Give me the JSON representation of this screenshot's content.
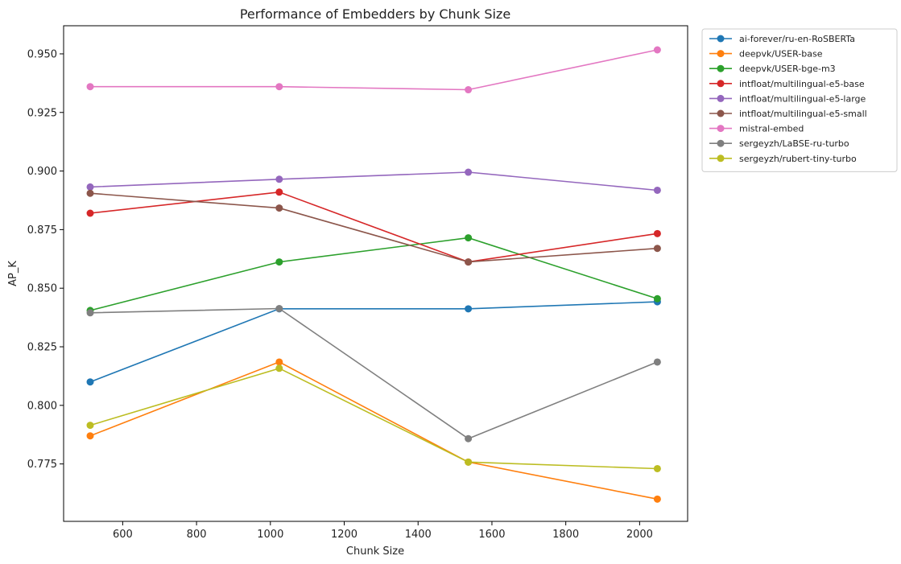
{
  "chart_data": {
    "type": "line",
    "title": "Performance of Embedders by Chunk Size",
    "xlabel": "Chunk Size",
    "ylabel": "AP_K",
    "x": [
      512,
      1024,
      1536,
      2048
    ],
    "xlim": [
      440,
      2130
    ],
    "ylim": [
      0.7505,
      0.962
    ],
    "xticks": [
      600,
      800,
      1000,
      1200,
      1400,
      1600,
      1800,
      2000
    ],
    "yticks": [
      0.775,
      0.8,
      0.825,
      0.85,
      0.875,
      0.9,
      0.925,
      0.95
    ],
    "xtick_labels": [
      "600",
      "800",
      "1000",
      "1200",
      "1400",
      "1600",
      "1800",
      "2000"
    ],
    "ytick_labels": [
      "0.775",
      "0.800",
      "0.825",
      "0.850",
      "0.875",
      "0.900",
      "0.925",
      "0.950"
    ],
    "grid": false,
    "legend_placement": "outside-top-right",
    "series": [
      {
        "name": "ai-forever/ru-en-RoSBERTa",
        "color": "#1f77b4",
        "values": [
          0.81,
          0.8412,
          0.8412,
          0.8442
        ]
      },
      {
        "name": "deepvk/USER-base",
        "color": "#ff7f0e",
        "values": [
          0.787,
          0.8185,
          0.7758,
          0.76
        ]
      },
      {
        "name": "deepvk/USER-bge-m3",
        "color": "#2ca02c",
        "values": [
          0.8405,
          0.8612,
          0.8715,
          0.8455
        ]
      },
      {
        "name": "intfloat/multilingual-e5-base",
        "color": "#d62728",
        "values": [
          0.882,
          0.891,
          0.8612,
          0.8733
        ]
      },
      {
        "name": "intfloat/multilingual-e5-large",
        "color": "#9467bd",
        "values": [
          0.8932,
          0.8965,
          0.8995,
          0.8918
        ]
      },
      {
        "name": "intfloat/multilingual-e5-small",
        "color": "#8c564b",
        "values": [
          0.8905,
          0.8842,
          0.8612,
          0.867
        ]
      },
      {
        "name": "mistral-embed",
        "color": "#e377c2",
        "values": [
          0.936,
          0.936,
          0.9347,
          0.9517
        ]
      },
      {
        "name": "sergeyzh/LaBSE-ru-turbo",
        "color": "#7f7f7f",
        "values": [
          0.8395,
          0.8413,
          0.7858,
          0.8185
        ]
      },
      {
        "name": "sergeyzh/rubert-tiny-turbo",
        "color": "#bcbd22",
        "values": [
          0.7915,
          0.8158,
          0.7758,
          0.773
        ]
      }
    ]
  }
}
